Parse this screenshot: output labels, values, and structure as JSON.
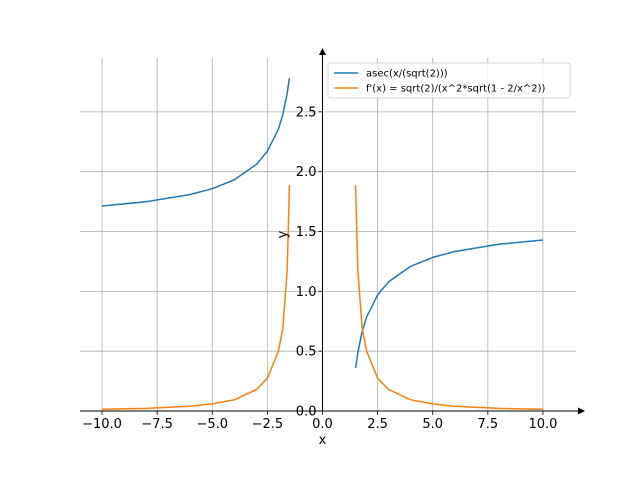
{
  "chart_data": {
    "type": "line",
    "xlabel": "x",
    "ylabel": "y",
    "xlim": [
      -11.0,
      11.5
    ],
    "ylim": [
      0.0,
      2.95
    ],
    "grid": true,
    "legend_position": "top-right",
    "x_ticks": [
      -10.0,
      -7.5,
      -5.0,
      -2.5,
      0.0,
      2.5,
      5.0,
      7.5,
      10.0
    ],
    "x_tick_labels": [
      "−10.0",
      "−7.5",
      "−5.0",
      "−2.5",
      "0.0",
      "2.5",
      "5.0",
      "7.5",
      "10.0"
    ],
    "y_ticks": [
      0.0,
      0.5,
      1.0,
      1.5,
      2.0,
      2.5
    ],
    "y_tick_labels": [
      "0.0",
      "0.5",
      "1.0",
      "1.5",
      "2.0",
      "2.5"
    ],
    "series": [
      {
        "name": "asec(x/(sqrt(2)))",
        "color": "#1f77b4",
        "segments": [
          {
            "x": [
              -10.0,
              -8.0,
              -6.0,
              -5.0,
              -4.0,
              -3.0,
              -2.5,
              -2.0,
              -1.8,
              -1.6,
              -1.5
            ],
            "y": [
              1.713,
              1.749,
              1.809,
              1.858,
              1.932,
              2.061,
              2.171,
              2.356,
              2.475,
              2.656,
              2.782
            ]
          },
          {
            "x": [
              1.5,
              1.6,
              1.8,
              2.0,
              2.5,
              3.0,
              4.0,
              5.0,
              6.0,
              8.0,
              10.0
            ],
            "y": [
              0.36,
              0.486,
              0.667,
              0.785,
              0.97,
              1.08,
              1.209,
              1.284,
              1.333,
              1.393,
              1.429
            ]
          }
        ]
      },
      {
        "name": "f'(x) = sqrt(2)/(x^2*sqrt(1 - 2/x^2))",
        "color": "#ff7f0e",
        "segments": [
          {
            "x": [
              -10.0,
              -8.0,
              -6.0,
              -5.0,
              -4.0,
              -3.0,
              -2.5,
              -2.0,
              -1.8,
              -1.6,
              -1.5
            ],
            "y": [
              0.014,
              0.022,
              0.04,
              0.059,
              0.094,
              0.179,
              0.274,
              0.5,
              0.689,
              1.178,
              1.886
            ]
          },
          {
            "x": [
              1.5,
              1.6,
              1.8,
              2.0,
              2.5,
              3.0,
              4.0,
              5.0,
              6.0,
              8.0,
              10.0
            ],
            "y": [
              1.886,
              1.178,
              0.689,
              0.5,
              0.274,
              0.179,
              0.094,
              0.059,
              0.04,
              0.022,
              0.014
            ]
          }
        ]
      }
    ]
  }
}
